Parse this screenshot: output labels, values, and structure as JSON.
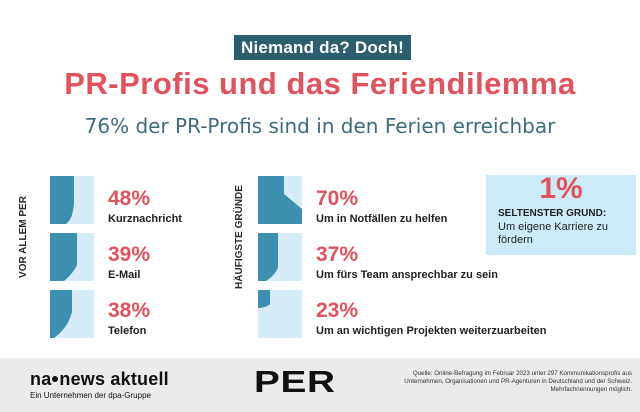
{
  "kicker": "Niemand da? Doch!",
  "title": "PR-Profis und das Feriendilemma",
  "subtitle": "76% der PR-Profis sind in den Ferien erreichbar",
  "colors": {
    "accent_red": "#e0525c",
    "dark_teal": "#2b5f6e",
    "icon_fill": "#3d8fb0",
    "icon_bg": "#d6edf8",
    "callout_bg": "#cdeaf8"
  },
  "chart_data": [
    {
      "type": "bar",
      "section_label": "VOR ALLEM PER",
      "categories": [
        "Kurznachricht",
        "E-Mail",
        "Telefon"
      ],
      "display_values": [
        "48%",
        "39%",
        "38%"
      ],
      "values": [
        48,
        39,
        38
      ],
      "ylim": [
        0,
        100
      ]
    },
    {
      "type": "bar",
      "section_label": "HÄUFIGSTE GRÜNDE",
      "categories": [
        "Um in Notfällen zu helfen",
        "Um fürs Team ansprechbar zu sein",
        "Um an wichtigen Projekten weiterzuarbeiten"
      ],
      "display_values": [
        "70%",
        "37%",
        "23%"
      ],
      "values": [
        70,
        37,
        23
      ],
      "ylim": [
        0,
        100
      ]
    }
  ],
  "callout": {
    "value": "1%",
    "title": "SELTENSTER GRUND:",
    "text": "Um eigene Karriere zu fördern"
  },
  "footer": {
    "logo_left_a": "na",
    "logo_left_b": "news aktuell",
    "logo_sub": "Ein Unternehmen der dpa-Gruppe",
    "logo_per": "PER",
    "source": "Quelle: Online-Befragung im Februar 2023 unter 297 Kommunikationsprofis aus Unternehmen, Organisationen und PR-Agenturen in Deutschland und der Schweiz. Mehrfachnennungen möglich."
  }
}
